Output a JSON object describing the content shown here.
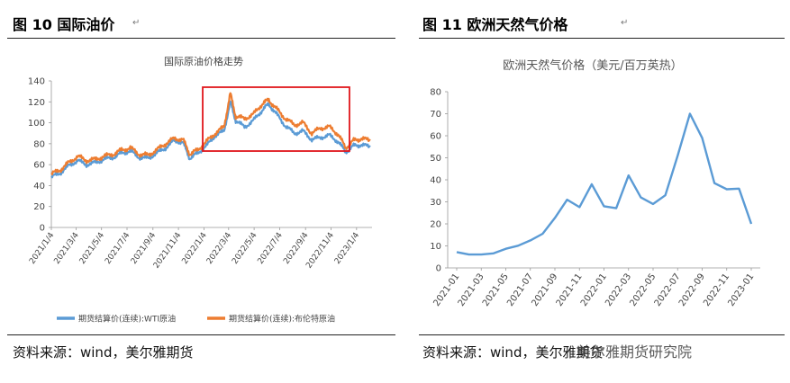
{
  "left_figure": {
    "heading": "图 10  国际油价",
    "source": "资料来源：wind，美尔雅期货",
    "return_mark": "↵"
  },
  "right_figure": {
    "heading": "图 11    欧洲天然气价格",
    "source": "资料来源：wind，美尔雅期货",
    "return_mark": "↵"
  },
  "watermark": "美尔雅期货研究院",
  "chart_data": [
    {
      "type": "line",
      "title": "国际原油价格走势",
      "xlabel": "",
      "ylabel": "",
      "ylim": [
        0,
        140
      ],
      "yticks": [
        0,
        20,
        40,
        60,
        80,
        100,
        120,
        140
      ],
      "xticks": [
        "2021/1/4",
        "2021/3/4",
        "2021/5/4",
        "2021/7/4",
        "2021/9/4",
        "2021/11/4",
        "2022/1/4",
        "2022/3/4",
        "2022/5/4",
        "2022/7/4",
        "2022/9/4",
        "2022/11/4",
        "2023/1/4"
      ],
      "grid": false,
      "legend_position": "bottom",
      "highlight_box": {
        "from": "2022/1/4",
        "to": "2022/12/15",
        "ymin": 73,
        "ymax": 134,
        "color": "#e0161b"
      },
      "x": [
        "2021-01-04",
        "2021-01-25",
        "2021-02-15",
        "2021-03-08",
        "2021-03-29",
        "2021-04-19",
        "2021-05-10",
        "2021-06-01",
        "2021-06-21",
        "2021-07-12",
        "2021-08-02",
        "2021-08-23",
        "2021-09-13",
        "2021-10-04",
        "2021-10-25",
        "2021-11-15",
        "2021-12-01",
        "2021-12-20",
        "2022-01-10",
        "2022-01-31",
        "2022-02-21",
        "2022-03-08",
        "2022-03-21",
        "2022-04-11",
        "2022-05-02",
        "2022-05-23",
        "2022-06-08",
        "2022-06-27",
        "2022-07-18",
        "2022-08-08",
        "2022-08-29",
        "2022-09-19",
        "2022-10-10",
        "2022-10-31",
        "2022-11-21",
        "2022-12-09",
        "2022-12-28",
        "2023-01-16",
        "2023-02-06"
      ],
      "series": [
        {
          "name": "期货结算价(连续):WTI原油",
          "color": "#5b9bd5",
          "values": [
            48,
            52,
            59,
            64,
            60,
            62,
            65,
            67,
            71,
            73,
            67,
            66,
            71,
            76,
            83,
            81,
            66,
            71,
            78,
            88,
            92,
            120,
            102,
            96,
            102,
            112,
            118,
            108,
            97,
            90,
            92,
            84,
            86,
            88,
            82,
            72,
            78,
            79,
            77
          ]
        },
        {
          "name": "期货结算价(连续):布伦特原油",
          "color": "#ed7d31",
          "values": [
            51,
            55,
            62,
            68,
            64,
            65,
            68,
            70,
            74,
            76,
            70,
            69,
            74,
            80,
            85,
            84,
            70,
            74,
            82,
            90,
            96,
            128,
            106,
            104,
            108,
            118,
            122,
            113,
            104,
            98,
            100,
            90,
            95,
            96,
            89,
            76,
            83,
            85,
            83
          ]
        }
      ]
    },
    {
      "type": "line",
      "title": "欧洲天然气价格（美元/百万英热）",
      "xlabel": "",
      "ylabel": "",
      "ylim": [
        0,
        80
      ],
      "yticks": [
        0,
        10,
        20,
        30,
        40,
        50,
        60,
        70,
        80
      ],
      "xticks": [
        "2021-01",
        "2021-03",
        "2021-05",
        "2021-07",
        "2021-09",
        "2021-11",
        "2022-01",
        "2022-03",
        "2022-05",
        "2022-07",
        "2022-09",
        "2022-11",
        "2023-01"
      ],
      "grid": false,
      "x": [
        "2021-01",
        "2021-02",
        "2021-03",
        "2021-04",
        "2021-05",
        "2021-06",
        "2021-07",
        "2021-08",
        "2021-09",
        "2021-10",
        "2021-11",
        "2021-12",
        "2022-01",
        "2022-02",
        "2022-03",
        "2022-04",
        "2022-05",
        "2022-06",
        "2022-07",
        "2022-08",
        "2022-09",
        "2022-10",
        "2022-11",
        "2022-12",
        "2023-01"
      ],
      "series": [
        {
          "color": "#5b9bd5",
          "values": [
            7.2,
            6.1,
            6.1,
            6.6,
            8.7,
            10.1,
            12.5,
            15.5,
            22.7,
            31.0,
            27.6,
            38.0,
            28.0,
            27.1,
            42.0,
            32.0,
            29.0,
            33.0,
            51.0,
            70.0,
            59.0,
            38.5,
            35.7,
            36.0,
            20.0
          ]
        }
      ]
    }
  ]
}
